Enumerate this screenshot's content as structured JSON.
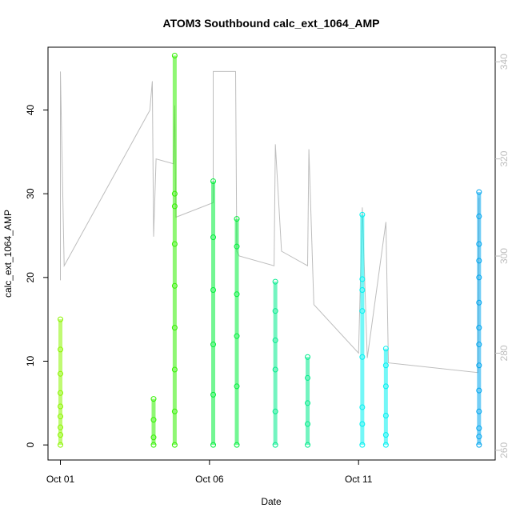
{
  "chart_data": {
    "type": "scatter",
    "title": "ATOM3 Southbound calc_ext_1064_AMP",
    "xlabel": "Date",
    "ylabel": "calc_ext_1064_AMP",
    "x_unit": "date",
    "xlim": [
      "2016-09-30T14:00",
      "2016-10-15T14:00"
    ],
    "ylim": [
      -1.8,
      47.5
    ],
    "y2lim": [
      258,
      343
    ],
    "x_ticks": [
      {
        "date": "2016-10-01",
        "label": "Oct 01"
      },
      {
        "date": "2016-10-06",
        "label": "Oct 06"
      },
      {
        "date": "2016-10-11",
        "label": "Oct 11"
      }
    ],
    "y_ticks": [
      0,
      10,
      20,
      30,
      40
    ],
    "y2_ticks": [
      260,
      280,
      300,
      320,
      340
    ],
    "grid": false,
    "legend": "none",
    "secondary_color": "#bdbdbd",
    "series": [
      {
        "type": "scatter",
        "color": "#8cf500",
        "values": [
          {
            "t": "2016-10-01T00:00",
            "y": 0
          },
          {
            "t": "2016-10-01T00:00",
            "y": 1.2
          },
          {
            "t": "2016-10-01T00:00",
            "y": 2.1
          },
          {
            "t": "2016-10-01T00:00",
            "y": 3.4
          },
          {
            "t": "2016-10-01T00:00",
            "y": 4.6
          },
          {
            "t": "2016-10-01T00:00",
            "y": 6.2
          },
          {
            "t": "2016-10-01T00:00",
            "y": 8.5
          },
          {
            "t": "2016-10-01T00:00",
            "y": 11.4
          },
          {
            "t": "2016-10-01T00:00",
            "y": 15
          }
        ]
      },
      {
        "type": "scatter",
        "color": "#33f000",
        "values": [
          {
            "t": "2016-10-04T03:00",
            "y": 0
          },
          {
            "t": "2016-10-04T03:00",
            "y": 0.9
          },
          {
            "t": "2016-10-04T03:00",
            "y": 3
          },
          {
            "t": "2016-10-04T03:00",
            "y": 5.5
          },
          {
            "t": "2016-10-04T20:00",
            "y": 0
          },
          {
            "t": "2016-10-04T20:00",
            "y": 4
          },
          {
            "t": "2016-10-04T20:00",
            "y": 9
          },
          {
            "t": "2016-10-04T20:00",
            "y": 14
          },
          {
            "t": "2016-10-04T20:00",
            "y": 19
          },
          {
            "t": "2016-10-04T20:00",
            "y": 24
          },
          {
            "t": "2016-10-04T20:00",
            "y": 28.5
          },
          {
            "t": "2016-10-04T20:00",
            "y": 30
          },
          {
            "t": "2016-10-04T20:00",
            "y": 46.5
          }
        ]
      },
      {
        "type": "scatter",
        "color": "#00ef3b",
        "values": [
          {
            "t": "2016-10-06T03:00",
            "y": 0
          },
          {
            "t": "2016-10-06T03:00",
            "y": 6
          },
          {
            "t": "2016-10-06T03:00",
            "y": 12
          },
          {
            "t": "2016-10-06T03:00",
            "y": 18.5
          },
          {
            "t": "2016-10-06T03:00",
            "y": 24.8
          },
          {
            "t": "2016-10-06T03:00",
            "y": 31.5
          },
          {
            "t": "2016-10-06T22:00",
            "y": 0
          },
          {
            "t": "2016-10-06T22:00",
            "y": 7
          },
          {
            "t": "2016-10-06T22:00",
            "y": 13
          },
          {
            "t": "2016-10-06T22:00",
            "y": 18
          },
          {
            "t": "2016-10-06T22:00",
            "y": 23.7
          },
          {
            "t": "2016-10-06T22:00",
            "y": 27
          }
        ]
      },
      {
        "type": "scatter",
        "color": "#00eb8c",
        "values": [
          {
            "t": "2016-10-08T05:00",
            "y": 0
          },
          {
            "t": "2016-10-08T05:00",
            "y": 4
          },
          {
            "t": "2016-10-08T05:00",
            "y": 9
          },
          {
            "t": "2016-10-08T05:00",
            "y": 12.5
          },
          {
            "t": "2016-10-08T05:00",
            "y": 16
          },
          {
            "t": "2016-10-08T05:00",
            "y": 19.5
          },
          {
            "t": "2016-10-09T07:00",
            "y": 0
          },
          {
            "t": "2016-10-09T07:00",
            "y": 2.5
          },
          {
            "t": "2016-10-09T07:00",
            "y": 5
          },
          {
            "t": "2016-10-09T07:00",
            "y": 8
          },
          {
            "t": "2016-10-09T07:00",
            "y": 10.5
          }
        ]
      },
      {
        "type": "scatter",
        "color": "#00f0f0",
        "values": [
          {
            "t": "2016-10-11T03:00",
            "y": 0
          },
          {
            "t": "2016-10-11T03:00",
            "y": 2.5
          },
          {
            "t": "2016-10-11T03:00",
            "y": 4.5
          },
          {
            "t": "2016-10-11T03:00",
            "y": 10.5
          },
          {
            "t": "2016-10-11T03:00",
            "y": 16
          },
          {
            "t": "2016-10-11T03:00",
            "y": 18.5
          },
          {
            "t": "2016-10-11T03:00",
            "y": 19.8
          },
          {
            "t": "2016-10-11T03:00",
            "y": 27.5
          },
          {
            "t": "2016-10-11T22:00",
            "y": 0
          },
          {
            "t": "2016-10-11T22:00",
            "y": 1.2
          },
          {
            "t": "2016-10-11T22:00",
            "y": 3.5
          },
          {
            "t": "2016-10-11T22:00",
            "y": 7
          },
          {
            "t": "2016-10-11T22:00",
            "y": 9.5
          },
          {
            "t": "2016-10-11T22:00",
            "y": 11.5
          }
        ]
      },
      {
        "type": "scatter",
        "color": "#00a5ee",
        "values": [
          {
            "t": "2016-10-15T01:00",
            "y": 0
          },
          {
            "t": "2016-10-15T01:00",
            "y": 1
          },
          {
            "t": "2016-10-15T01:00",
            "y": 2
          },
          {
            "t": "2016-10-15T01:00",
            "y": 4
          },
          {
            "t": "2016-10-15T01:00",
            "y": 6.5
          },
          {
            "t": "2016-10-15T01:00",
            "y": 9.5
          },
          {
            "t": "2016-10-15T01:00",
            "y": 12
          },
          {
            "t": "2016-10-15T01:00",
            "y": 14
          },
          {
            "t": "2016-10-15T01:00",
            "y": 17
          },
          {
            "t": "2016-10-15T01:00",
            "y": 20
          },
          {
            "t": "2016-10-15T01:00",
            "y": 22
          },
          {
            "t": "2016-10-15T01:00",
            "y": 24
          },
          {
            "t": "2016-10-15T01:00",
            "y": 27.3
          },
          {
            "t": "2016-10-15T01:00",
            "y": 30.2
          }
        ]
      },
      {
        "type": "line",
        "axis": "right",
        "color": "#bdbdbd",
        "values": [
          {
            "t": "2016-10-01T00:00",
            "y": 295
          },
          {
            "t": "2016-10-01T00:00",
            "y": 338
          },
          {
            "t": "2016-10-01T03:00",
            "y": 298
          },
          {
            "t": "2016-10-04T00:00",
            "y": 330
          },
          {
            "t": "2016-10-04T02:00",
            "y": 336
          },
          {
            "t": "2016-10-04T03:00",
            "y": 304
          },
          {
            "t": "2016-10-04T05:00",
            "y": 320
          },
          {
            "t": "2016-10-04T19:00",
            "y": 319
          },
          {
            "t": "2016-10-04T20:00",
            "y": 331
          },
          {
            "t": "2016-10-04T21:00",
            "y": 308
          },
          {
            "t": "2016-10-06T03:00",
            "y": 311
          },
          {
            "t": "2016-10-06T03:00",
            "y": 338
          },
          {
            "t": "2016-10-06T07:00",
            "y": 338
          },
          {
            "t": "2016-10-06T21:00",
            "y": 338
          },
          {
            "t": "2016-10-06T22:00",
            "y": 301
          },
          {
            "t": "2016-10-07T00:00",
            "y": 300
          },
          {
            "t": "2016-10-08T04:00",
            "y": 298
          },
          {
            "t": "2016-10-08T05:00",
            "y": 323
          },
          {
            "t": "2016-10-08T10:00",
            "y": 301
          },
          {
            "t": "2016-10-09T07:00",
            "y": 298
          },
          {
            "t": "2016-10-09T08:00",
            "y": 322
          },
          {
            "t": "2016-10-09T12:00",
            "y": 290
          },
          {
            "t": "2016-10-11T00:00",
            "y": 280
          },
          {
            "t": "2016-10-11T03:00",
            "y": 310
          },
          {
            "t": "2016-10-11T07:00",
            "y": 279
          },
          {
            "t": "2016-10-11T22:00",
            "y": 307
          },
          {
            "t": "2016-10-12T00:00",
            "y": 278
          },
          {
            "t": "2016-10-15T00:00",
            "y": 276
          },
          {
            "t": "2016-10-15T01:00",
            "y": 312
          }
        ]
      }
    ]
  }
}
